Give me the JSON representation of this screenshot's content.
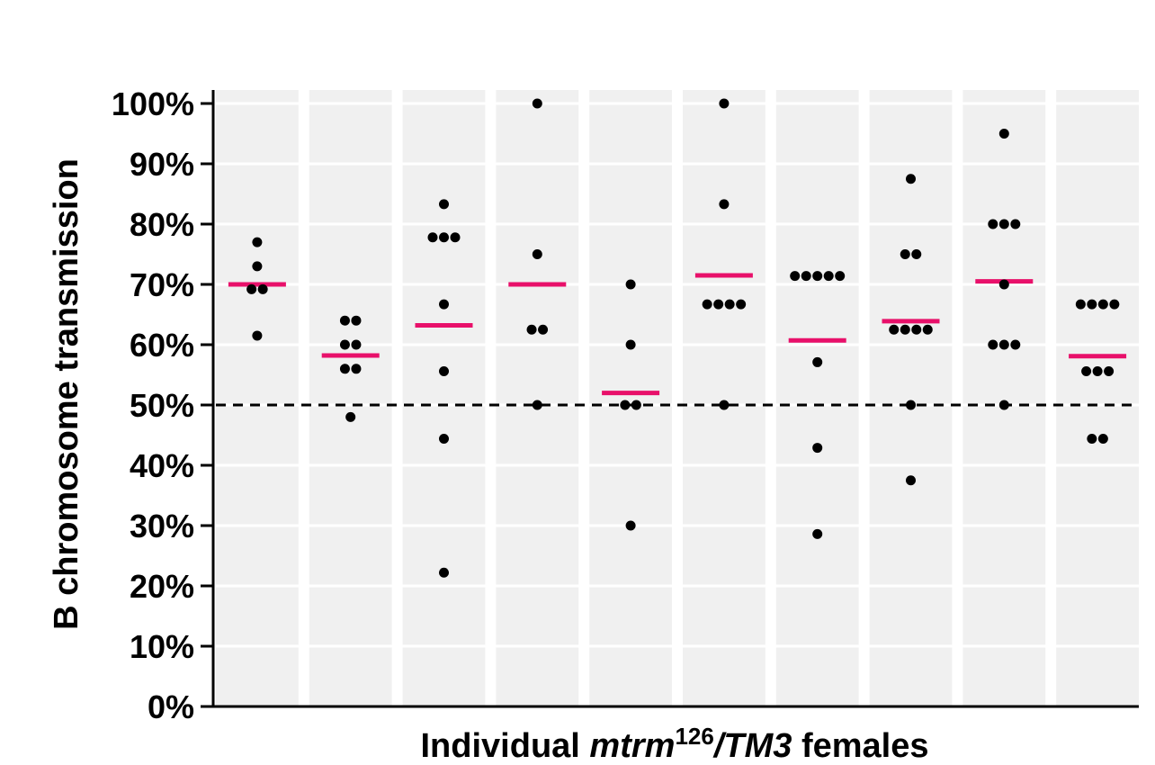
{
  "chart_data": {
    "type": "scatter",
    "ylabel": "B chromosome transmission",
    "xlabel": {
      "prefix": "Individual ",
      "gene": "mtrm",
      "allele_superscript": "126",
      "balancer": "/TM3",
      "suffix": " females"
    },
    "ylim": [
      0,
      100
    ],
    "yticks": [
      "0%",
      "10%",
      "20%",
      "30%",
      "40%",
      "50%",
      "60%",
      "70%",
      "80%",
      "90%",
      "100%"
    ],
    "reference_line": {
      "value": 50,
      "style": "dashed"
    },
    "grid": true,
    "colors": {
      "points": "#000000",
      "mean": "#e8106a",
      "panel": "#f0f0f0",
      "grid": "#ffffff"
    },
    "groups": [
      {
        "values": [
          77,
          73,
          69.2,
          69.2,
          61.5
        ],
        "mean": 70
      },
      {
        "values": [
          64,
          64,
          60,
          60,
          56,
          56,
          48
        ],
        "mean": 58.2
      },
      {
        "values": [
          83.3,
          77.8,
          77.8,
          77.8,
          66.7,
          55.6,
          44.4,
          22.2
        ],
        "mean": 63.2
      },
      {
        "values": [
          100,
          75,
          62.5,
          62.5,
          50
        ],
        "mean": 70
      },
      {
        "values": [
          70,
          60,
          50,
          50,
          30
        ],
        "mean": 52
      },
      {
        "values": [
          100,
          83.3,
          66.7,
          66.7,
          66.7,
          66.7,
          50
        ],
        "mean": 71.5
      },
      {
        "values": [
          71.4,
          71.4,
          71.4,
          71.4,
          71.4,
          57.1,
          42.9,
          28.6
        ],
        "mean": 60.7
      },
      {
        "values": [
          87.5,
          75,
          75,
          62.5,
          62.5,
          62.5,
          62.5,
          50,
          37.5
        ],
        "mean": 63.9
      },
      {
        "values": [
          95,
          80,
          80,
          80,
          70,
          60,
          60,
          60,
          50
        ],
        "mean": 70.5
      },
      {
        "values": [
          66.7,
          66.7,
          66.7,
          66.7,
          55.6,
          55.6,
          55.6,
          44.4,
          44.4
        ],
        "mean": 58.1
      }
    ]
  }
}
